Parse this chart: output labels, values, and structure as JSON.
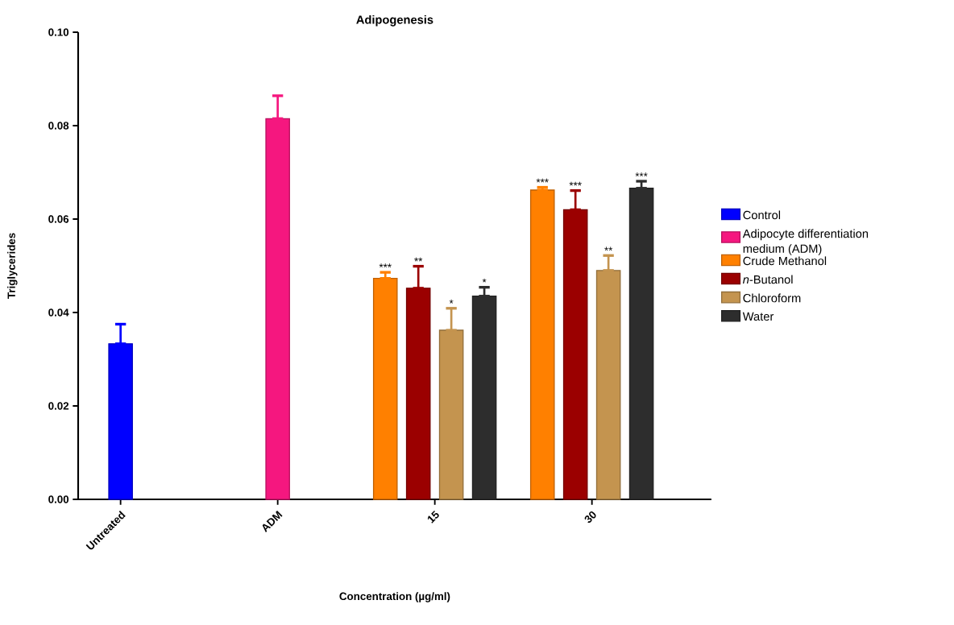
{
  "chart_data": {
    "type": "bar",
    "title": "Adipogenesis",
    "xlabel": "Concentration (µg/ml)",
    "ylabel": "Triglycerides",
    "categories": [
      "Untreated",
      "ADM",
      "15",
      "30"
    ],
    "series": [
      {
        "name": "Control",
        "color": "#0000ff",
        "values": [
          0.0333,
          null,
          null,
          null
        ],
        "errors": [
          [
            0.0333,
            0.0375
          ],
          null,
          null,
          null
        ]
      },
      {
        "name": "Adipocyte differentiation medium (ADM)",
        "color": "#f5177f",
        "values": [
          null,
          0.0815,
          null,
          null
        ],
        "errors": [
          null,
          [
            0.0815,
            0.0864
          ],
          null,
          null
        ]
      },
      {
        "name": "Crude Methanol",
        "color": "#ff8000",
        "values": [
          null,
          null,
          0.0473,
          0.0662
        ],
        "errors": [
          null,
          null,
          [
            0.0473,
            0.0486
          ],
          [
            0.0662,
            0.0668
          ]
        ]
      },
      {
        "name": "*n*-Butanol",
        "color": "#9b0000",
        "values": [
          null,
          null,
          0.0452,
          0.062
        ],
        "errors": [
          null,
          null,
          [
            0.0452,
            0.0499
          ],
          [
            0.062,
            0.0661
          ]
        ]
      },
      {
        "name": "Chloroform",
        "color": "#c4944f",
        "values": [
          null,
          null,
          0.0362,
          0.049
        ],
        "errors": [
          null,
          null,
          [
            0.0362,
            0.0409
          ],
          [
            0.049,
            0.0522
          ]
        ]
      },
      {
        "name": "Water",
        "color": "#2d2d2d",
        "values": [
          null,
          null,
          0.0435,
          0.0666
        ],
        "errors": [
          null,
          null,
          [
            0.0435,
            0.0454
          ],
          [
            0.0666,
            0.0681
          ]
        ]
      }
    ],
    "annotations": [
      "***",
      "**",
      "*",
      "*",
      "***",
      "***",
      "**",
      "***"
    ],
    "ylim": [
      0,
      0.1
    ],
    "yticks": [
      {
        "value": 0,
        "label": "0.00"
      },
      {
        "value": 0.02,
        "label": "0.02"
      },
      {
        "value": 0.04,
        "label": "0.04"
      },
      {
        "value": 0.06,
        "label": "0.06"
      },
      {
        "value": 0.08,
        "label": "0.08"
      },
      {
        "value": 0.1,
        "label": "0.10"
      }
    ],
    "legend": "right",
    "grid": false
  }
}
